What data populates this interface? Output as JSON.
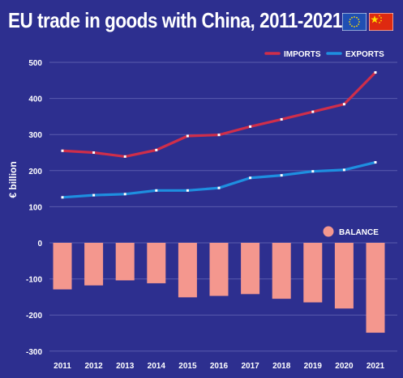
{
  "title": "EU trade in goods with China, 2011-2021",
  "colors": {
    "background": "#2d2f8f",
    "imports": "#cf2e4a",
    "exports": "#1e8fe0",
    "balance": "#f4978e",
    "grid": "#5a5cae",
    "text": "#ffffff"
  },
  "flags": {
    "eu": "eu-flag-icon",
    "china": "china-flag-icon"
  },
  "chart_data": {
    "type": "line",
    "title": "EU trade in goods with China, 2011-2021",
    "ylabel": "€ billion",
    "ylim": [
      -300,
      500
    ],
    "yticks": [
      -300,
      -200,
      -100,
      0,
      100,
      200,
      300,
      400,
      500
    ],
    "grid": true,
    "legend_lines": "top-right",
    "legend_bars": "right",
    "categories": [
      "2011",
      "2012",
      "2013",
      "2014",
      "2015",
      "2016",
      "2017",
      "2018",
      "2019",
      "2020",
      "2021"
    ],
    "series": [
      {
        "name": "IMPORTS",
        "type": "line",
        "values": [
          255,
          250,
          239,
          257,
          296,
          299,
          322,
          342,
          363,
          384,
          472
        ]
      },
      {
        "name": "EXPORTS",
        "type": "line",
        "values": [
          126,
          132,
          135,
          145,
          145,
          152,
          180,
          187,
          198,
          202,
          223
        ]
      },
      {
        "name": "BALANCE",
        "type": "bar",
        "values": [
          -129,
          -118,
          -104,
          -112,
          -151,
          -147,
          -142,
          -155,
          -165,
          -182,
          -249
        ]
      }
    ]
  }
}
